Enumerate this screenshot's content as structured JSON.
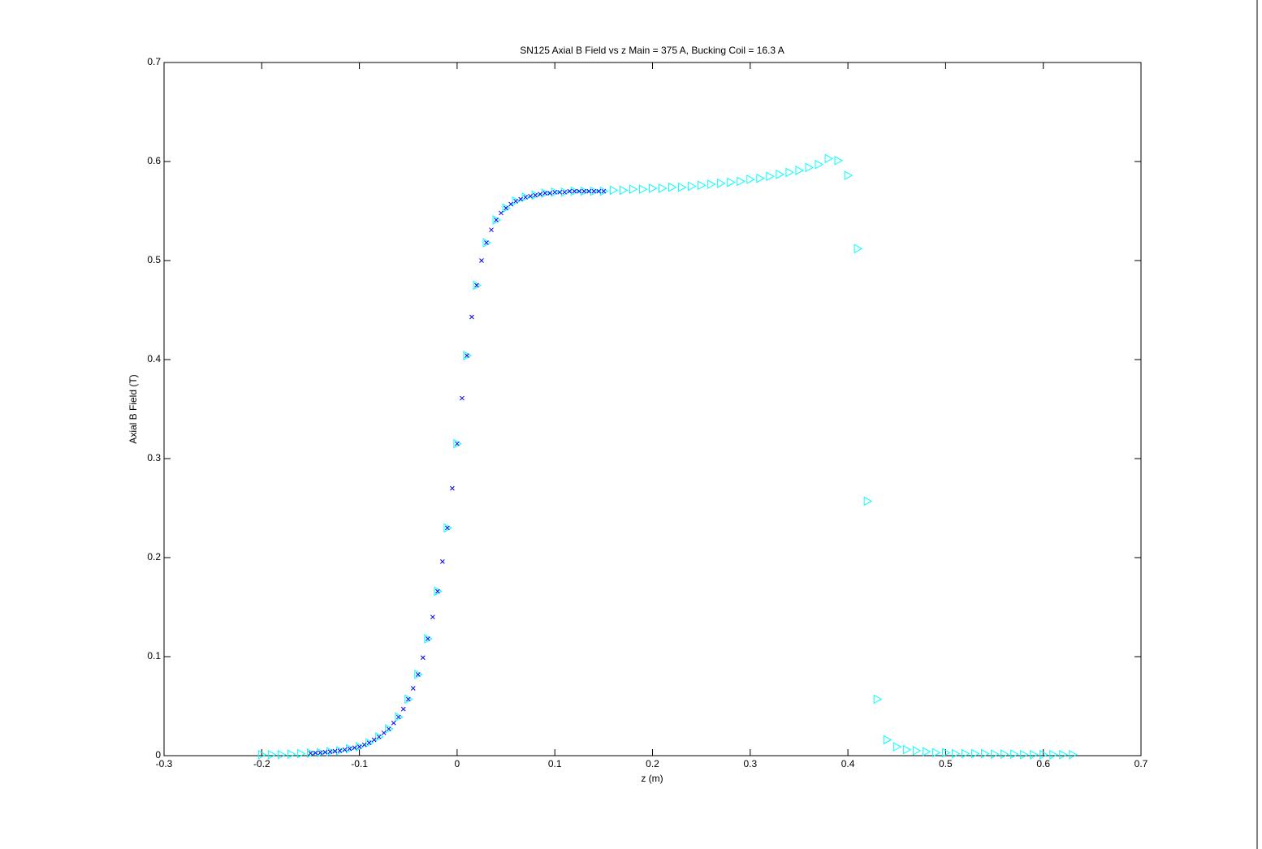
{
  "chart_data": {
    "type": "scatter",
    "title": "SN125 Axial B Field vs z Main = 375 A, Bucking Coil = 16.3 A",
    "x_label": "z (m)",
    "y_label": "Axial B Field (T)",
    "xlim": [
      -0.3,
      0.7
    ],
    "ylim": [
      0,
      0.7
    ],
    "xticks": [
      -0.3,
      -0.2,
      -0.1,
      0,
      0.1,
      0.2,
      0.3,
      0.4,
      0.5,
      0.6,
      0.7
    ],
    "yticks": [
      0,
      0.1,
      0.2,
      0.3,
      0.4,
      0.5,
      0.6,
      0.7
    ],
    "series": [
      {
        "color": "#00ffff",
        "marker": "triangle-right",
        "x": [
          -0.2,
          -0.19,
          -0.18,
          -0.17,
          -0.16,
          -0.15,
          -0.14,
          -0.13,
          -0.12,
          -0.11,
          -0.1,
          -0.09,
          -0.08,
          -0.07,
          -0.06,
          -0.05,
          -0.04,
          -0.03,
          -0.02,
          -0.01,
          0,
          0.01,
          0.02,
          0.03,
          0.04,
          0.05,
          0.06,
          0.07,
          0.08,
          0.09,
          0.1,
          0.11,
          0.12,
          0.13,
          0.14,
          0.15,
          0.16,
          0.17,
          0.18,
          0.19,
          0.2,
          0.21,
          0.22,
          0.23,
          0.24,
          0.25,
          0.26,
          0.27,
          0.28,
          0.29,
          0.3,
          0.31,
          0.32,
          0.33,
          0.34,
          0.35,
          0.36,
          0.37,
          0.38,
          0.39,
          0.4,
          0.41,
          0.42,
          0.43,
          0.44,
          0.45,
          0.46,
          0.47,
          0.48,
          0.49,
          0.5,
          0.51,
          0.52,
          0.53,
          0.54,
          0.55,
          0.56,
          0.57,
          0.58,
          0.59,
          0.6,
          0.61,
          0.62,
          0.63
        ],
        "values": [
          0.001,
          0.001,
          0.001,
          0.0015,
          0.002,
          0.0025,
          0.003,
          0.004,
          0.005,
          0.007,
          0.009,
          0.013,
          0.019,
          0.027,
          0.039,
          0.057,
          0.082,
          0.118,
          0.166,
          0.23,
          0.315,
          0.404,
          0.475,
          0.518,
          0.541,
          0.553,
          0.56,
          0.564,
          0.566,
          0.568,
          0.569,
          0.569,
          0.57,
          0.57,
          0.57,
          0.57,
          0.571,
          0.571,
          0.572,
          0.572,
          0.573,
          0.573,
          0.574,
          0.574,
          0.575,
          0.576,
          0.577,
          0.578,
          0.579,
          0.58,
          0.582,
          0.583,
          0.585,
          0.587,
          0.589,
          0.591,
          0.594,
          0.597,
          0.603,
          0.601,
          0.586,
          0.512,
          0.257,
          0.057,
          0.016,
          0.009,
          0.006,
          0.005,
          0.004,
          0.003,
          0.003,
          0.002,
          0.002,
          0.002,
          0.002,
          0.0015,
          0.0015,
          0.0015,
          0.001,
          0.001,
          0.001,
          0.001,
          0.001,
          0.001
        ]
      },
      {
        "color": "#0000ff",
        "marker": "x",
        "x": [
          -0.15,
          -0.145,
          -0.14,
          -0.135,
          -0.13,
          -0.125,
          -0.12,
          -0.115,
          -0.11,
          -0.105,
          -0.1,
          -0.095,
          -0.09,
          -0.085,
          -0.08,
          -0.075,
          -0.07,
          -0.065,
          -0.06,
          -0.055,
          -0.05,
          -0.045,
          -0.04,
          -0.035,
          -0.03,
          -0.025,
          -0.02,
          -0.015,
          -0.01,
          -0.005,
          0,
          0.005,
          0.01,
          0.015,
          0.02,
          0.025,
          0.03,
          0.035,
          0.04,
          0.045,
          0.05,
          0.055,
          0.06,
          0.065,
          0.07,
          0.075,
          0.08,
          0.085,
          0.09,
          0.095,
          0.1,
          0.105,
          0.11,
          0.115,
          0.12,
          0.125,
          0.13,
          0.135,
          0.14,
          0.145,
          0.15
        ],
        "values": [
          0.0025,
          0.0028,
          0.003,
          0.0035,
          0.004,
          0.0045,
          0.005,
          0.006,
          0.007,
          0.008,
          0.009,
          0.011,
          0.013,
          0.016,
          0.019,
          0.023,
          0.027,
          0.033,
          0.039,
          0.047,
          0.057,
          0.068,
          0.082,
          0.099,
          0.118,
          0.14,
          0.166,
          0.196,
          0.23,
          0.27,
          0.315,
          0.361,
          0.404,
          0.443,
          0.475,
          0.5,
          0.518,
          0.531,
          0.541,
          0.548,
          0.553,
          0.557,
          0.56,
          0.562,
          0.564,
          0.565,
          0.566,
          0.567,
          0.568,
          0.568,
          0.569,
          0.569,
          0.569,
          0.57,
          0.57,
          0.57,
          0.57,
          0.57,
          0.57,
          0.57,
          0.57
        ]
      }
    ]
  }
}
